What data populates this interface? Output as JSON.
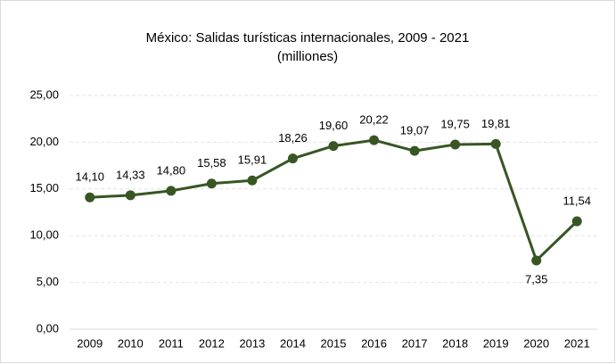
{
  "chart_data": {
    "type": "line",
    "title": "México: Salidas turísticas internacionales, 2009 - 2021",
    "subtitle": "(milliones)",
    "categories": [
      "2009",
      "2010",
      "2011",
      "2012",
      "2013",
      "2014",
      "2015",
      "2016",
      "2017",
      "2018",
      "2019",
      "2020",
      "2021"
    ],
    "series": [
      {
        "name": "Salidas turísticas",
        "color": "#375623",
        "values": [
          14.1,
          14.33,
          14.8,
          15.58,
          15.91,
          18.26,
          19.6,
          20.22,
          19.07,
          19.75,
          19.81,
          7.35,
          11.54
        ],
        "value_labels": [
          "14,10",
          "14,33",
          "14,80",
          "15,58",
          "15,91",
          "18,26",
          "19,60",
          "20,22",
          "19,07",
          "19,75",
          "19,81",
          "7,35",
          "11,54"
        ]
      }
    ],
    "ylim": [
      0,
      25
    ],
    "yticks": [
      {
        "value": 0,
        "label": "0,00"
      },
      {
        "value": 5,
        "label": "5,00"
      },
      {
        "value": 10,
        "label": "10,00"
      },
      {
        "value": 15,
        "label": "15,00"
      },
      {
        "value": 20,
        "label": "20,00"
      },
      {
        "value": 25,
        "label": "25,00"
      }
    ],
    "grid": true
  }
}
